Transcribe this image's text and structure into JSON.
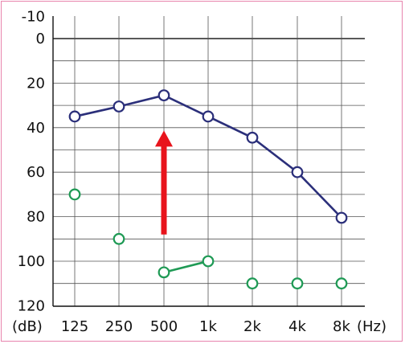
{
  "chart_data": {
    "type": "line",
    "categories": [
      "125",
      "250",
      "500",
      "1k",
      "2k",
      "4k",
      "8k"
    ],
    "y_ticks": [
      "-10",
      "0",
      "20",
      "40",
      "60",
      "80",
      "100",
      "120"
    ],
    "y_unit_label": "(dB)",
    "x_unit_label": "(Hz)",
    "ylim": [
      -10,
      120
    ],
    "y_inverted": true,
    "grid": true,
    "series": [
      {
        "name": "",
        "color": "#2b2f7a",
        "marker": "open-circle",
        "connected": true,
        "values": [
          35,
          30.5,
          25.5,
          35,
          44.5,
          60,
          80.5
        ]
      },
      {
        "name": "",
        "color": "#1f9a55",
        "marker": "open-circle",
        "connected_segments": [
          [
            2,
            3
          ]
        ],
        "values": [
          70,
          90,
          105,
          100,
          110,
          110,
          110
        ]
      }
    ],
    "annotations": [
      {
        "type": "arrow",
        "color": "#e8141c",
        "category": "500",
        "from_y": 88,
        "to_y": 42
      }
    ]
  }
}
